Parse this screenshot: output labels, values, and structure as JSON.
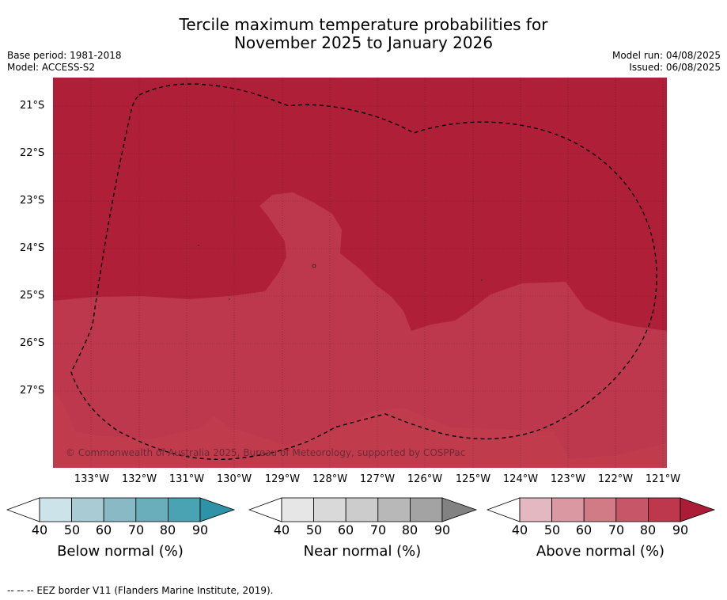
{
  "title_line1": "Tercile maximum temperature probabilities for",
  "title_line2": "November 2025 to January 2026",
  "base_period": "Base period: 1981-2018",
  "model": "Model: ACCESS-S2",
  "model_run": "Model run: 04/08/2025",
  "issued": "Issued: 06/08/2025",
  "copyright": "© Commonwealth of Australia 2025, Bureau of Meteorology, supported by COSPPac",
  "footer": "--  --  -- EEZ border V11 (Flanders Marine Institute, 2019).",
  "map": {
    "lat_labels": [
      "21°S",
      "22°S",
      "23°S",
      "24°S",
      "25°S",
      "26°S",
      "27°S"
    ],
    "lon_labels": [
      "133°W",
      "132°W",
      "131°W",
      "130°W",
      "129°W",
      "128°W",
      "127°W",
      "126°W",
      "125°W",
      "124°W",
      "123°W",
      "122°W",
      "121°W"
    ],
    "colors": {
      "above_80_90": "#b01f38",
      "above_70_80": "#bd384c"
    }
  },
  "legends": [
    {
      "title": "Below normal (%)",
      "ticks": [
        "40",
        "50",
        "60",
        "70",
        "80",
        "90"
      ],
      "colors": [
        "#ffffff",
        "#cce3ea",
        "#a9cbd3",
        "#8ab9c6",
        "#6aaebb",
        "#4aa3b3",
        "#2e93a6"
      ]
    },
    {
      "title": "Near normal (%)",
      "ticks": [
        "40",
        "50",
        "60",
        "70",
        "80",
        "90"
      ],
      "colors": [
        "#ffffff",
        "#e6e6e6",
        "#d9d9d9",
        "#cccccc",
        "#b8b8b8",
        "#a3a3a3",
        "#828282"
      ]
    },
    {
      "title": "Above normal (%)",
      "ticks": [
        "40",
        "50",
        "60",
        "70",
        "80",
        "90"
      ],
      "colors": [
        "#ffffff",
        "#e3b8c0",
        "#d998a2",
        "#d17b86",
        "#c75768",
        "#bd384c",
        "#ab1d37"
      ]
    }
  ]
}
